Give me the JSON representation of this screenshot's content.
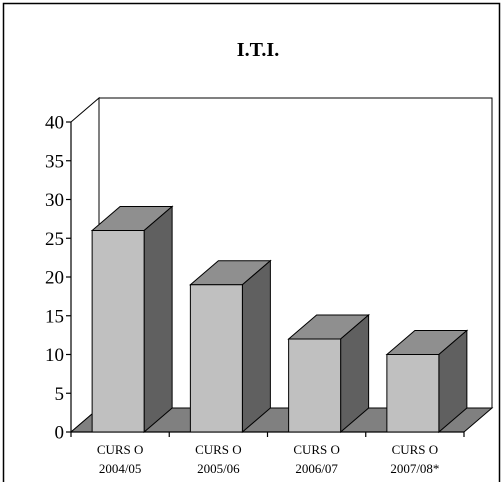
{
  "chart_data": {
    "type": "bar",
    "title": "I.T.I.",
    "categories": [
      [
        "CURS O",
        "2004/05"
      ],
      [
        "CURS O",
        "2005/06"
      ],
      [
        "CURS O",
        "2006/07"
      ],
      [
        "CURS O",
        "2007/08*"
      ]
    ],
    "values": [
      26,
      19,
      12,
      10
    ],
    "ylim": [
      0,
      40
    ],
    "yticks": [
      0,
      5,
      10,
      15,
      20,
      25,
      30,
      35,
      40
    ],
    "grid": false,
    "legend": "none",
    "colors": {
      "bar_front": "#c0c0c0",
      "bar_top": "#8f8f8f",
      "bar_side": "#606060",
      "floor": "#808080",
      "frame": "#000000"
    }
  }
}
